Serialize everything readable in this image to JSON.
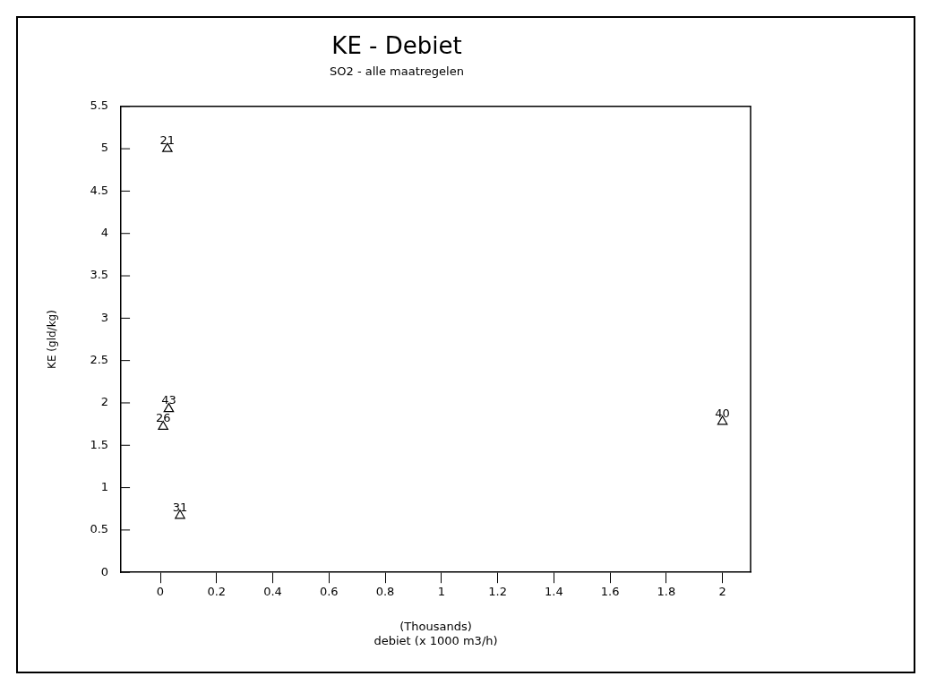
{
  "chart_data": {
    "type": "scatter",
    "title": "KE - Debiet",
    "subtitle": "SO2 - alle maatregelen",
    "xlabel": "debiet (x 1000 m3/h)",
    "ylabel": "KE (gld/kg)",
    "x": [
      0.025,
      0.03,
      0.01,
      0.07,
      2.0
    ],
    "values": [
      5.0,
      1.93,
      1.72,
      0.67,
      1.78
    ],
    "color": "#000000",
    "marker": "triangle",
    "grid": false,
    "legend": false,
    "xlim": [
      -0.14,
      2.1
    ],
    "xticks": [
      0,
      0.2,
      0.4,
      0.6,
      0.8,
      1,
      1.2,
      1.4,
      1.6,
      1.8,
      2
    ],
    "ylim": [
      0,
      5.5
    ],
    "yticks": [
      0,
      0.5,
      1,
      1.5,
      2,
      2.5,
      3,
      3.5,
      4,
      4.5,
      5,
      5.5
    ],
    "annotations": [
      "(Thousands)",
      {
        "text": "21",
        "x": 0.025,
        "y": 5.0
      },
      {
        "text": "43",
        "x": 0.03,
        "y": 1.93
      },
      {
        "text": "26",
        "x": 0.01,
        "y": 1.72
      },
      {
        "text": "31",
        "x": 0.07,
        "y": 0.67
      },
      {
        "text": "40",
        "x": 2.0,
        "y": 1.78
      }
    ]
  }
}
